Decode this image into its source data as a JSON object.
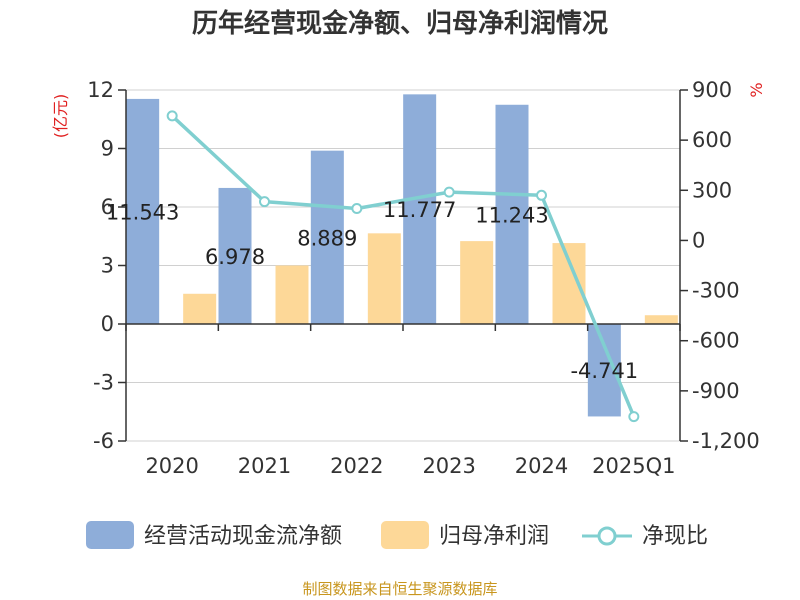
{
  "chart_data": {
    "type": "bar",
    "title": "历年经营现金净额、归母净利润情况",
    "categories": [
      "2020",
      "2021",
      "2022",
      "2023",
      "2024",
      "2025Q1"
    ],
    "series": [
      {
        "name": "经营活动现金流净额",
        "type": "bar",
        "axis": "left",
        "color": "#8eadd9",
        "values": [
          11.543,
          6.978,
          8.889,
          11.777,
          11.243,
          -4.741
        ]
      },
      {
        "name": "归母净利润",
        "type": "bar",
        "axis": "left",
        "color": "#fdd898",
        "values": [
          1.55,
          3.0,
          4.65,
          4.25,
          4.15,
          0.45
        ]
      },
      {
        "name": "净现比",
        "type": "line",
        "axis": "right",
        "color": "#80cfd0",
        "values": [
          745,
          232,
          191,
          289,
          270,
          -1054
        ]
      }
    ],
    "data_labels": [
      "11.543",
      "6.978",
      "8.889",
      "11.777",
      "11.243",
      "-4.741"
    ],
    "y_left": {
      "label": "(亿元)",
      "min": -6,
      "max": 12,
      "ticks": [
        "-6",
        "-3",
        "0",
        "3",
        "6",
        "9",
        "12"
      ]
    },
    "y_right": {
      "label": "%",
      "min": -1200,
      "max": 900,
      "ticks": [
        "-1,200",
        "-900",
        "-600",
        "-300",
        "0",
        "300",
        "600",
        "900"
      ]
    },
    "legend": [
      "经营活动现金流净额",
      "归母净利润",
      "净现比"
    ],
    "legend_position": "bottom",
    "grid": true
  },
  "source": "制图数据来自恒生聚源数据库"
}
